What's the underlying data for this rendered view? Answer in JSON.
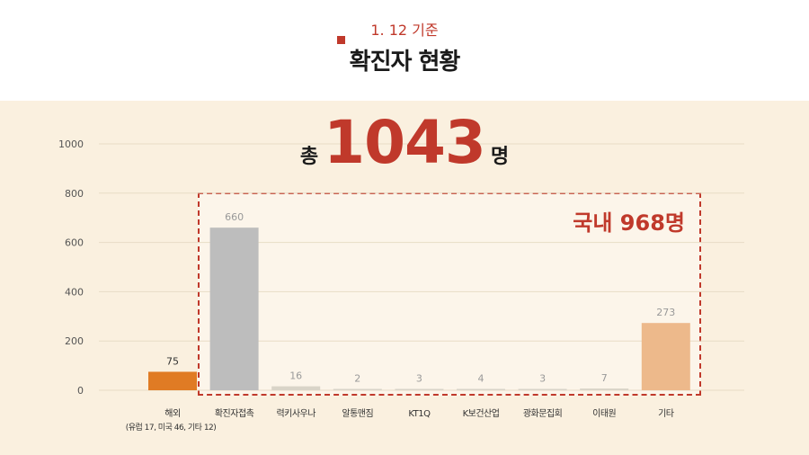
{
  "header": {
    "date_label": "1. 12 기준",
    "title": "확진자 현황"
  },
  "summary": {
    "total_prefix": "총",
    "total_value": "1043",
    "total_suffix": "명",
    "domestic_label": "국내 968명"
  },
  "colors": {
    "accent": "#c0392b",
    "panel_bg": "#faf0df",
    "overseas": "#e07b24",
    "contact": "#bdbdbd",
    "small": "#d9d4c8",
    "other": "#edb98b"
  },
  "chart_data": {
    "type": "bar",
    "ylim": [
      0,
      1000
    ],
    "yticks": [
      0,
      200,
      400,
      600,
      800,
      1000
    ],
    "grid": true,
    "categories": [
      {
        "label": "해외",
        "sublabel": "(유럽 17, 미국 46, 기타 12)",
        "value": 75,
        "value_label": "75",
        "color": "#e07b24"
      },
      {
        "label": "확진자접촉",
        "sublabel": "",
        "value": 660,
        "value_label": "660",
        "color": "#bdbdbd"
      },
      {
        "label": "력키사우나",
        "sublabel": "",
        "value": 16,
        "value_label": "16",
        "color": "#d9d4c8"
      },
      {
        "label": "알통맨짐",
        "sublabel": "",
        "value": 2,
        "value_label": "2",
        "color": "#d9d4c8"
      },
      {
        "label": "KT1Q",
        "sublabel": "",
        "value": 3,
        "value_label": "3",
        "color": "#d9d4c8"
      },
      {
        "label": "K보건산업",
        "sublabel": "",
        "value": 4,
        "value_label": "4",
        "color": "#d9d4c8"
      },
      {
        "label": "광화문집회",
        "sublabel": "",
        "value": 3,
        "value_label": "3",
        "color": "#d9d4c8"
      },
      {
        "label": "이태원",
        "sublabel": "",
        "value": 7,
        "value_label": "7",
        "color": "#d9d4c8"
      },
      {
        "label": "기타",
        "sublabel": "",
        "value": 273,
        "value_label": "273",
        "color": "#edb98b"
      }
    ]
  }
}
